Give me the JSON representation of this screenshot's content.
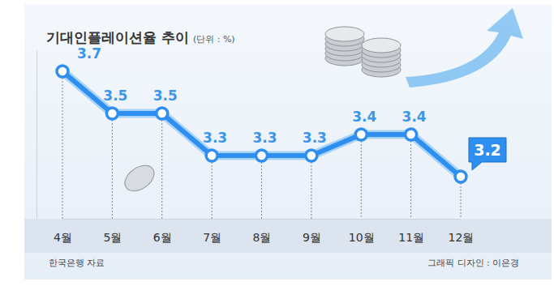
{
  "chart_data": {
    "type": "line",
    "title": "기대인플레이션율 추이",
    "subtitle": "(단위 : %)",
    "categories": [
      "4월",
      "5월",
      "6월",
      "7월",
      "8월",
      "9월",
      "10월",
      "11월",
      "12월"
    ],
    "values": [
      3.7,
      3.5,
      3.5,
      3.3,
      3.3,
      3.3,
      3.4,
      3.4,
      3.2
    ],
    "color": "#2e8ff0",
    "marker": "circle",
    "data_labels": true,
    "tick_labels": "x",
    "grid": false,
    "ylim": [
      3.0,
      3.8
    ],
    "annotations": [
      "한국은행 자료",
      "그래픽 디자인 : 이은경"
    ]
  }
}
